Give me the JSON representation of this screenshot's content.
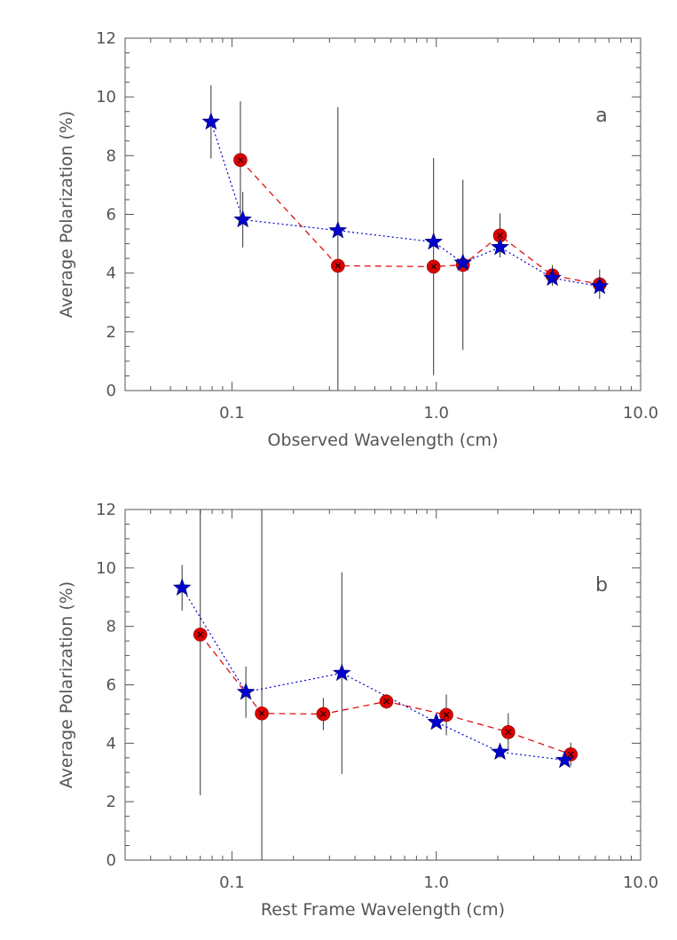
{
  "chart_data": [
    {
      "type": "scatter",
      "panel_label": "a",
      "xlabel": "Observed Wavelength (cm)",
      "ylabel": "Average Polarization (%)",
      "xscale": "log",
      "xlim": [
        0.03,
        10.0
      ],
      "ylim": [
        0,
        12
      ],
      "xticks": [
        0.1,
        1.0,
        10.0
      ],
      "xtick_labels": [
        "0.1",
        "1.0",
        "10.0"
      ],
      "yticks": [
        0,
        2,
        4,
        6,
        8,
        10,
        12
      ],
      "ytick_labels": [
        "0",
        "2",
        "4",
        "6",
        "8",
        "10",
        "12"
      ],
      "grid": false,
      "series": [
        {
          "marker": "circle-x",
          "color": "#dd0000",
          "line_style": "dashed",
          "x": [
            0.11,
            0.33,
            0.97,
            1.35,
            2.05,
            3.7,
            6.3
          ],
          "y": [
            7.85,
            4.25,
            4.22,
            4.28,
            5.28,
            3.92,
            3.62
          ],
          "err": [
            2.0,
            5.4,
            3.7,
            2.9,
            0.75,
            0.35,
            0.5
          ]
        },
        {
          "marker": "star",
          "color": "#0000cc",
          "line_style": "dotted",
          "x": [
            0.079,
            0.113,
            0.33,
            0.97,
            1.35,
            2.05,
            3.7,
            6.3
          ],
          "y": [
            9.15,
            5.82,
            5.45,
            5.06,
            4.35,
            4.88,
            3.83,
            3.55
          ],
          "err": [
            1.25,
            0.95,
            0,
            0,
            0,
            0,
            0,
            0
          ]
        }
      ]
    },
    {
      "type": "scatter",
      "panel_label": "b",
      "xlabel": "Rest Frame Wavelength (cm)",
      "ylabel": "Average Polarization (%)",
      "xscale": "log",
      "xlim": [
        0.03,
        10.0
      ],
      "ylim": [
        0,
        12
      ],
      "xticks": [
        0.1,
        1.0,
        10.0
      ],
      "xtick_labels": [
        "0.1",
        "1.0",
        "10.0"
      ],
      "yticks": [
        0,
        2,
        4,
        6,
        8,
        10,
        12
      ],
      "ytick_labels": [
        "0",
        "2",
        "4",
        "6",
        "8",
        "10",
        "12"
      ],
      "grid": false,
      "series": [
        {
          "marker": "circle-x",
          "color": "#dd0000",
          "line_style": "dashed",
          "x": [
            0.07,
            0.14,
            0.28,
            0.57,
            1.12,
            2.25,
            4.55
          ],
          "y": [
            7.72,
            5.02,
            5.0,
            5.43,
            4.97,
            4.38,
            3.62
          ],
          "err": [
            5.5,
            7.2,
            0.55,
            0.25,
            0.7,
            0.65,
            0.4
          ]
        },
        {
          "marker": "star",
          "color": "#0000cc",
          "line_style": "dotted",
          "x": [
            0.057,
            0.117,
            0.345,
            1.0,
            2.05,
            4.25
          ],
          "y": [
            9.32,
            5.75,
            6.4,
            4.72,
            3.7,
            3.42
          ],
          "err": [
            0.78,
            0.88,
            3.45,
            0,
            0.2,
            0
          ]
        }
      ]
    }
  ]
}
